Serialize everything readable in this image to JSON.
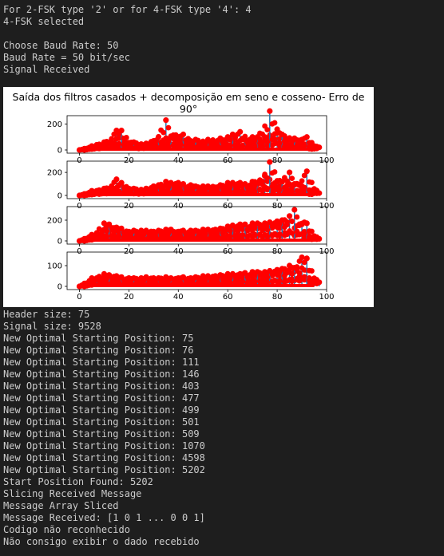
{
  "console_top": [
    "For 2-FSK type '2' or for 4-FSK type '4': 4",
    "4-FSK selected",
    "",
    "Choose Baud Rate: 50",
    "Baud Rate = 50 bit/sec",
    "Signal Received"
  ],
  "console_bottom": [
    "Header size: 75",
    "Signal size: 9528",
    "New Optimal Starting Position: 75",
    "New Optimal Starting Position: 76",
    "New Optimal Starting Position: 111",
    "New Optimal Starting Position: 146",
    "New Optimal Starting Position: 403",
    "New Optimal Starting Position: 477",
    "New Optimal Starting Position: 499",
    "New Optimal Starting Position: 501",
    "New Optimal Starting Position: 509",
    "New Optimal Starting Position: 1070",
    "New Optimal Starting Position: 4598",
    "New Optimal Starting Position: 5202",
    "Start Position Found: 5202",
    "Slicing Received Message",
    "Message Array Sliced",
    "Message Received: [1 0 1 ... 0 0 1]",
    "Codigo não reconhecido",
    "Não consigo exibir o dado recebido"
  ],
  "figure_title": "Saída dos filtros casados + decomposição em seno e cosseno- Erro de 90°",
  "colors": {
    "stem": "#1f77b4",
    "marker": "#ff0000",
    "background": "#1e1e1e",
    "text": "#cccccc"
  },
  "chart_data": [
    {
      "type": "line",
      "x_ticks": [
        0,
        20,
        40,
        60,
        80,
        100
      ],
      "y_ticks": [
        0,
        200
      ],
      "xlim": [
        0,
        100
      ],
      "ylim": [
        0,
        240
      ],
      "x": [
        0,
        5,
        10,
        15,
        20,
        25,
        30,
        35,
        40,
        45,
        50,
        55,
        60,
        65,
        70,
        75,
        80,
        85,
        90,
        95
      ],
      "series": [
        {
          "values": [
            0,
            30,
            60,
            150,
            55,
            45,
            70,
            230,
            100,
            70,
            55,
            60,
            100,
            140,
            100,
            100,
            160,
            90,
            80,
            10
          ]
        },
        {
          "values": [
            0,
            40,
            60,
            150,
            60,
            50,
            100,
            100,
            120,
            80,
            80,
            90,
            120,
            80,
            100,
            300,
            120,
            90,
            100,
            20
          ]
        }
      ]
    },
    {
      "type": "line",
      "x_ticks": [
        0,
        20,
        40,
        60,
        80,
        100
      ],
      "y_ticks": [
        0,
        200
      ],
      "xlim": [
        0,
        100
      ],
      "ylim": [
        0,
        270
      ],
      "x": [
        0,
        5,
        10,
        15,
        20,
        25,
        30,
        35,
        40,
        45,
        50,
        55,
        60,
        65,
        70,
        75,
        80,
        85,
        90,
        95
      ],
      "series": [
        {
          "values": [
            0,
            40,
            60,
            140,
            60,
            50,
            80,
            120,
            110,
            90,
            80,
            70,
            110,
            110,
            120,
            170,
            120,
            200,
            80,
            20
          ]
        },
        {
          "values": [
            0,
            40,
            60,
            110,
            60,
            60,
            90,
            110,
            100,
            80,
            80,
            90,
            110,
            100,
            110,
            290,
            120,
            100,
            210,
            20
          ]
        }
      ]
    },
    {
      "type": "line",
      "x_ticks": [
        0,
        20,
        40,
        60,
        80,
        100
      ],
      "y_ticks": [
        0,
        200
      ],
      "xlim": [
        0,
        100
      ],
      "ylim": [
        0,
        300
      ],
      "x": [
        0,
        5,
        10,
        15,
        20,
        25,
        30,
        35,
        40,
        45,
        50,
        55,
        60,
        65,
        70,
        75,
        80,
        85,
        90,
        95
      ],
      "series": [
        {
          "values": [
            0,
            60,
            170,
            130,
            90,
            100,
            90,
            110,
            90,
            100,
            110,
            110,
            140,
            160,
            170,
            170,
            190,
            240,
            160,
            20
          ]
        },
        {
          "values": [
            0,
            60,
            160,
            120,
            100,
            100,
            100,
            110,
            100,
            100,
            110,
            120,
            150,
            160,
            170,
            180,
            200,
            300,
            170,
            20
          ]
        }
      ]
    },
    {
      "type": "line",
      "x_ticks": [
        0,
        20,
        40,
        60,
        80,
        100
      ],
      "y_ticks": [
        0,
        100
      ],
      "xlim": [
        0,
        100
      ],
      "ylim": [
        0,
        150
      ],
      "x": [
        0,
        5,
        10,
        15,
        20,
        25,
        30,
        35,
        40,
        45,
        50,
        55,
        60,
        65,
        70,
        75,
        80,
        85,
        90,
        95
      ],
      "series": [
        {
          "values": [
            0,
            40,
            60,
            50,
            40,
            40,
            40,
            45,
            40,
            40,
            50,
            50,
            60,
            60,
            70,
            70,
            80,
            100,
            140,
            20
          ]
        },
        {
          "values": [
            0,
            40,
            55,
            45,
            40,
            45,
            40,
            40,
            45,
            45,
            50,
            55,
            60,
            65,
            70,
            75,
            85,
            90,
            135,
            20
          ]
        }
      ]
    }
  ]
}
